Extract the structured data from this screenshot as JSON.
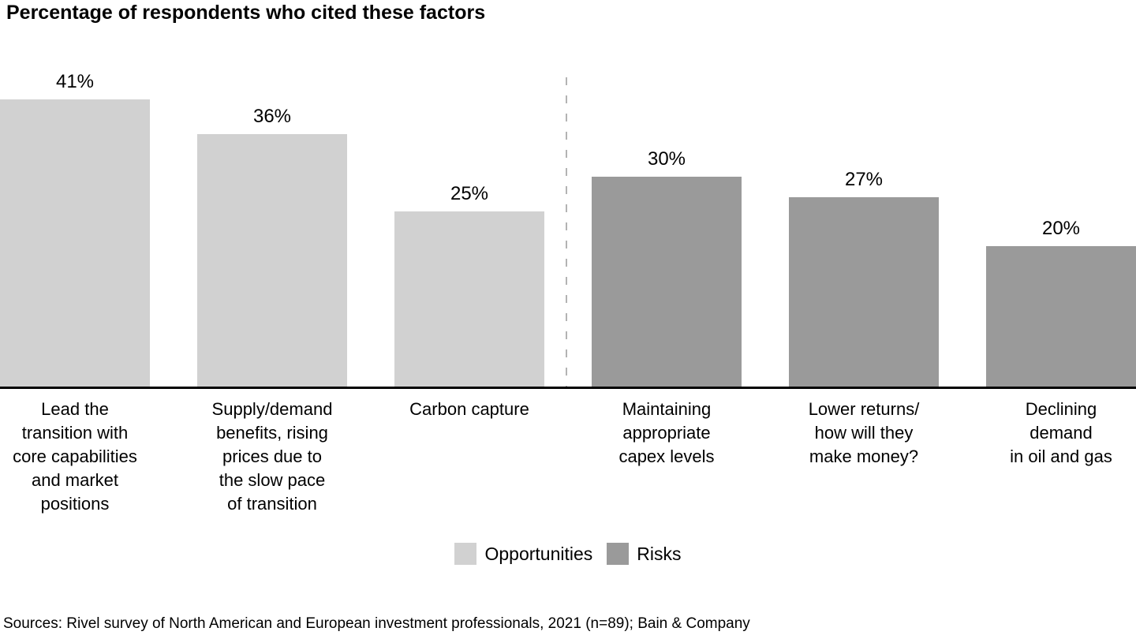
{
  "title": "Percentage of respondents who cited these factors",
  "source": "Sources: Rivel survey of North American and European investment professionals, 2021 (n=89); Bain & Company",
  "colors": {
    "opportunities": "#d1d1d1",
    "risks": "#9a9a9a",
    "divider": "#b3b3b3",
    "axis": "#000000",
    "text": "#000000",
    "background": "#ffffff"
  },
  "legend": [
    {
      "label": "Opportunities",
      "color": "#d1d1d1"
    },
    {
      "label": "Risks",
      "color": "#9a9a9a"
    }
  ],
  "chart_data": {
    "type": "bar",
    "title": "Percentage of respondents who cited these factors",
    "xlabel": "",
    "ylabel": "",
    "unit": "%",
    "ylim": [
      0,
      41
    ],
    "grid": false,
    "legend_position": "bottom",
    "categories": [
      "Lead the transition with core capabilities and market positions",
      "Supply/demand benefits, rising prices due to the slow pace of transition",
      "Carbon capture",
      "Maintaining appropriate capex levels",
      "Lower returns/ how will they make money?",
      "Declining demand in oil and gas"
    ],
    "values": [
      41,
      36,
      25,
      30,
      27,
      20
    ],
    "series_of": [
      "Opportunities",
      "Opportunities",
      "Opportunities",
      "Risks",
      "Risks",
      "Risks"
    ],
    "divider_after_index": 2,
    "bars": [
      {
        "group": "Opportunities",
        "value": 41,
        "value_label": "41%",
        "category_lines": "Lead the\ntransition with\ncore capabilities\nand market\npositions",
        "color": "#d1d1d1"
      },
      {
        "group": "Opportunities",
        "value": 36,
        "value_label": "36%",
        "category_lines": "Supply/demand\nbenefits, rising\nprices due to\nthe slow pace\nof transition",
        "color": "#d1d1d1"
      },
      {
        "group": "Opportunities",
        "value": 25,
        "value_label": "25%",
        "category_lines": "Carbon capture",
        "color": "#d1d1d1"
      },
      {
        "group": "Risks",
        "value": 30,
        "value_label": "30%",
        "category_lines": "Maintaining\nappropriate\ncapex levels",
        "color": "#9a9a9a"
      },
      {
        "group": "Risks",
        "value": 27,
        "value_label": "27%",
        "category_lines": "Lower returns/\nhow will they\nmake money?",
        "color": "#9a9a9a"
      },
      {
        "group": "Risks",
        "value": 20,
        "value_label": "20%",
        "category_lines": "Declining\ndemand\nin oil and gas",
        "color": "#9a9a9a"
      }
    ]
  }
}
